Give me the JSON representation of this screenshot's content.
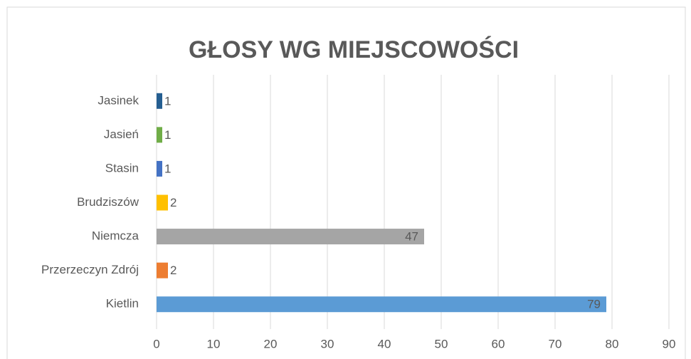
{
  "chart_data": {
    "type": "bar",
    "orientation": "horizontal",
    "title": "GŁOSY WG MIEJSCOWOŚCI",
    "categories": [
      "Jasinek",
      "Jasień",
      "Stasin",
      "Brudziszów",
      "Niemcza",
      "Przerzeczyn Zdrój",
      "Kietlin"
    ],
    "values": [
      1,
      1,
      1,
      2,
      47,
      2,
      79
    ],
    "colors": [
      "#255e91",
      "#70ad47",
      "#4472c4",
      "#ffc000",
      "#a5a5a5",
      "#ed7d31",
      "#5b9bd5"
    ],
    "xlim": [
      0,
      90
    ],
    "xticks": [
      0,
      10,
      20,
      30,
      40,
      50,
      60,
      70,
      80,
      90
    ],
    "grid": true
  }
}
